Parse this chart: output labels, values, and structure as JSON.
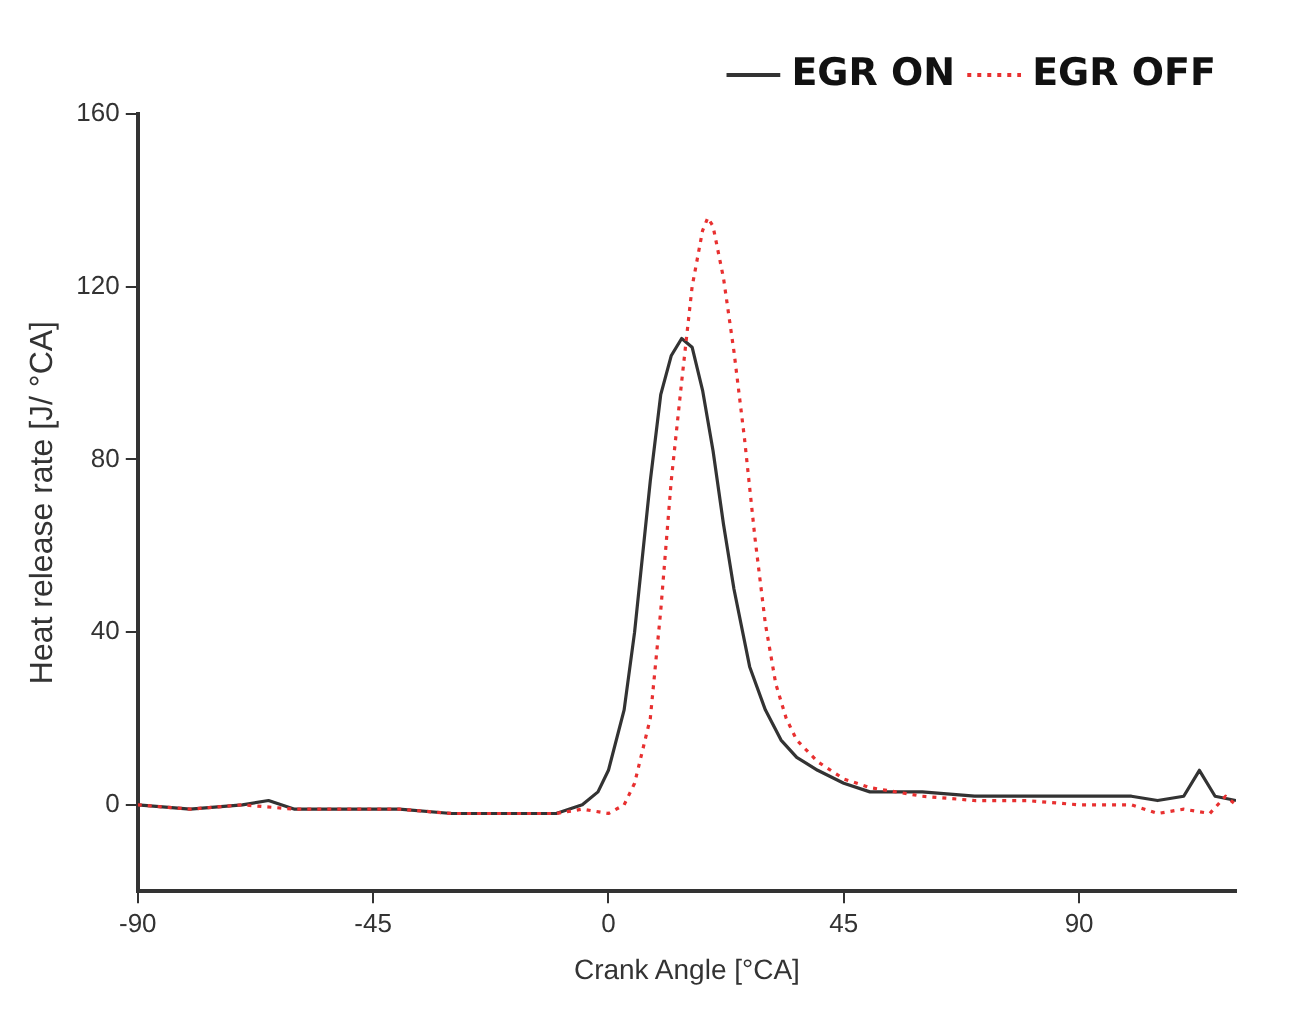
{
  "chart_data": {
    "type": "line",
    "xlabel": "Crank Angle [°CA]",
    "ylabel": "Heat release rate [J/ °CA]",
    "xlim": [
      -90,
      120
    ],
    "xticks": [
      -90,
      -45,
      0,
      45,
      90
    ],
    "ylim": [
      -20,
      160
    ],
    "yticks": [
      0,
      40,
      80,
      120,
      160
    ],
    "grid": false,
    "legend": "top right",
    "marker": "none",
    "series": [
      {
        "name": "EGR ON",
        "color": "#333333",
        "line_style": "solid",
        "x": [
          -90,
          -80,
          -70,
          -65,
          -60,
          -50,
          -40,
          -30,
          -20,
          -10,
          -5,
          -2,
          0,
          3,
          5,
          8,
          10,
          12,
          14,
          16,
          18,
          20,
          22,
          24,
          27,
          30,
          33,
          36,
          40,
          45,
          50,
          55,
          60,
          70,
          80,
          90,
          100,
          105,
          110,
          113,
          116,
          120
        ],
        "values": [
          0,
          -1,
          0,
          1,
          -1,
          -1,
          -1,
          -2,
          -2,
          -2,
          0,
          3,
          8,
          22,
          40,
          75,
          95,
          104,
          108,
          106,
          96,
          82,
          65,
          50,
          32,
          22,
          15,
          11,
          8,
          5,
          3,
          3,
          3,
          2,
          2,
          2,
          2,
          1,
          2,
          8,
          2,
          1
        ]
      },
      {
        "name": "EGR OFF",
        "color": "#e83030",
        "line_style": "dotted",
        "x": [
          -90,
          -80,
          -70,
          -60,
          -50,
          -40,
          -30,
          -20,
          -10,
          -5,
          0,
          3,
          5,
          8,
          10,
          12,
          14,
          16,
          18,
          19,
          20,
          22,
          24,
          26,
          28,
          30,
          32,
          34,
          36,
          40,
          45,
          50,
          60,
          70,
          80,
          90,
          100,
          105,
          110,
          115,
          118,
          120
        ],
        "values": [
          0,
          -1,
          0,
          -1,
          -1,
          -1,
          -2,
          -2,
          -2,
          -1,
          -2,
          0,
          5,
          20,
          45,
          75,
          98,
          120,
          133,
          136,
          134,
          122,
          105,
          85,
          62,
          42,
          28,
          20,
          15,
          10,
          6,
          4,
          2,
          1,
          1,
          0,
          0,
          -2,
          -1,
          -2,
          2,
          0
        ]
      }
    ]
  }
}
